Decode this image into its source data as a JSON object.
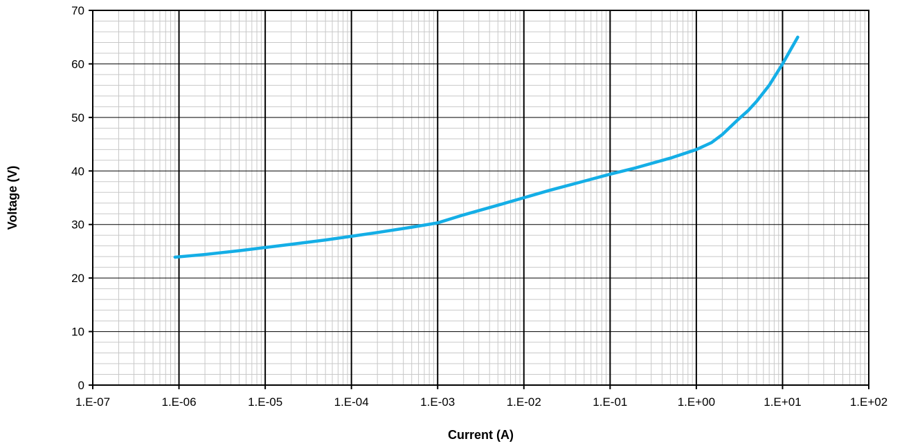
{
  "chart_data": {
    "type": "line",
    "title": "",
    "xlabel": "Current (A)",
    "ylabel": "Voltage (V)",
    "x_scale": "log",
    "xlim": [
      1e-07,
      100
    ],
    "ylim": [
      0,
      70
    ],
    "x_ticks": [
      1e-07,
      1e-06,
      1e-05,
      0.0001,
      0.001,
      0.01,
      0.1,
      1,
      10,
      100
    ],
    "x_tick_labels": [
      "1.E-07",
      "1.E-06",
      "1.E-05",
      "1.E-04",
      "1.E-03",
      "1.E-02",
      "1.E-01",
      "1.E+00",
      "1.E+01",
      "1.E+02"
    ],
    "y_ticks": [
      0,
      10,
      20,
      30,
      40,
      50,
      60,
      70
    ],
    "y_tick_labels": [
      "0",
      "10",
      "20",
      "30",
      "40",
      "50",
      "60",
      "70"
    ],
    "y_minor_step": 2,
    "grid": {
      "major": true,
      "minor": true,
      "major_color": "#000000",
      "minor_color": "#c8c8c8"
    },
    "legend": "none",
    "series": [
      {
        "color": "#14aee6",
        "x": [
          9e-07,
          2e-06,
          5e-06,
          1e-05,
          2e-05,
          5e-05,
          0.0001,
          0.0002,
          0.0005,
          0.001,
          0.002,
          0.005,
          0.01,
          0.02,
          0.05,
          0.1,
          0.2,
          0.5,
          1,
          1.5,
          2,
          3,
          4,
          5,
          7,
          10,
          15
        ],
        "y": [
          23.9,
          24.4,
          25.1,
          25.7,
          26.3,
          27.1,
          27.8,
          28.5,
          29.5,
          30.3,
          31.8,
          33.6,
          35.0,
          36.4,
          38.1,
          39.4,
          40.6,
          42.4,
          44.0,
          45.3,
          46.8,
          49.5,
          51.3,
          53.0,
          56.0,
          60.0,
          65.0
        ]
      }
    ]
  }
}
